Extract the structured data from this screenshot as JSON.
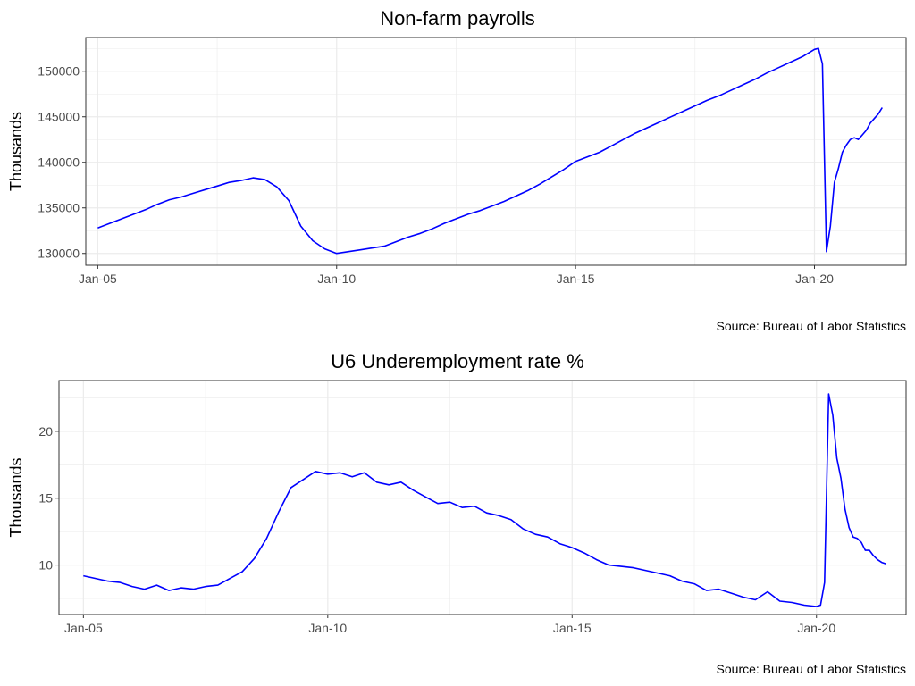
{
  "chart_data": [
    {
      "type": "line",
      "title": "Non-farm payrolls",
      "ylabel": "Thousands",
      "xlabel": "",
      "caption": "Source: Bureau of Labor Statistics",
      "x_ticks": [
        "Jan-05",
        "Jan-10",
        "Jan-15",
        "Jan-20"
      ],
      "y_ticks": [
        130000,
        135000,
        140000,
        145000,
        150000
      ],
      "xlim": [
        "2004-10",
        "2021-12"
      ],
      "ylim": [
        128700,
        153700
      ],
      "grid": true,
      "line_color": "#0000ff",
      "series": [
        {
          "x": [
            "2005-01",
            "2005-04",
            "2005-07",
            "2005-10",
            "2006-01",
            "2006-04",
            "2006-07",
            "2006-10",
            "2007-01",
            "2007-04",
            "2007-07",
            "2007-10",
            "2008-01",
            "2008-04",
            "2008-07",
            "2008-10",
            "2009-01",
            "2009-04",
            "2009-07",
            "2009-10",
            "2010-01",
            "2010-04",
            "2010-07",
            "2010-10",
            "2011-01",
            "2011-04",
            "2011-07",
            "2011-10",
            "2012-01",
            "2012-04",
            "2012-07",
            "2012-10",
            "2013-01",
            "2013-04",
            "2013-07",
            "2013-10",
            "2014-01",
            "2014-04",
            "2014-07",
            "2014-10",
            "2015-01",
            "2015-04",
            "2015-07",
            "2015-10",
            "2016-01",
            "2016-04",
            "2016-07",
            "2016-10",
            "2017-01",
            "2017-04",
            "2017-07",
            "2017-10",
            "2018-01",
            "2018-04",
            "2018-07",
            "2018-10",
            "2019-01",
            "2019-04",
            "2019-07",
            "2019-10",
            "2020-01",
            "2020-02",
            "2020-03",
            "2020-04",
            "2020-05",
            "2020-06",
            "2020-07",
            "2020-08",
            "2020-09",
            "2020-10",
            "2020-11",
            "2020-12",
            "2021-01",
            "2021-02",
            "2021-03",
            "2021-04",
            "2021-05",
            "2021-06"
          ],
          "y": [
            132800,
            133300,
            133800,
            134300,
            134800,
            135400,
            135900,
            136200,
            136600,
            137000,
            137400,
            137800,
            138000,
            138300,
            138100,
            137300,
            135800,
            133000,
            131400,
            130500,
            130000,
            130200,
            130400,
            130600,
            130800,
            131300,
            131800,
            132200,
            132700,
            133300,
            133800,
            134300,
            134700,
            135200,
            135700,
            136300,
            136900,
            137600,
            138400,
            139200,
            140100,
            140600,
            141100,
            141800,
            142500,
            143200,
            143800,
            144400,
            145000,
            145600,
            146200,
            146800,
            147300,
            147900,
            148500,
            149100,
            149800,
            150400,
            151000,
            151600,
            152400,
            152500,
            150800,
            130200,
            133000,
            137800,
            139300,
            141100,
            141900,
            142500,
            142700,
            142500,
            143000,
            143500,
            144300,
            144800,
            145300,
            146000
          ]
        }
      ]
    },
    {
      "type": "line",
      "title": "U6 Underemployment rate %",
      "ylabel": "Thousands",
      "xlabel": "",
      "caption": "Source: Bureau of Labor Statistics",
      "x_ticks": [
        "Jan-05",
        "Jan-10",
        "Jan-15",
        "Jan-20"
      ],
      "y_ticks": [
        10,
        15,
        20
      ],
      "xlim": [
        "2004-07",
        "2021-11"
      ],
      "ylim": [
        6.3,
        23.8
      ],
      "grid": true,
      "line_color": "#0000ff",
      "series": [
        {
          "x": [
            "2005-01",
            "2005-04",
            "2005-07",
            "2005-10",
            "2006-01",
            "2006-04",
            "2006-07",
            "2006-10",
            "2007-01",
            "2007-04",
            "2007-07",
            "2007-10",
            "2008-01",
            "2008-04",
            "2008-07",
            "2008-10",
            "2009-01",
            "2009-04",
            "2009-07",
            "2009-10",
            "2010-01",
            "2010-04",
            "2010-07",
            "2010-10",
            "2011-01",
            "2011-04",
            "2011-07",
            "2011-10",
            "2012-01",
            "2012-04",
            "2012-07",
            "2012-10",
            "2013-01",
            "2013-04",
            "2013-07",
            "2013-10",
            "2014-01",
            "2014-04",
            "2014-07",
            "2014-10",
            "2015-01",
            "2015-04",
            "2015-07",
            "2015-10",
            "2016-01",
            "2016-04",
            "2016-07",
            "2016-10",
            "2017-01",
            "2017-04",
            "2017-07",
            "2017-10",
            "2018-01",
            "2018-04",
            "2018-07",
            "2018-10",
            "2019-01",
            "2019-04",
            "2019-07",
            "2019-10",
            "2020-01",
            "2020-02",
            "2020-03",
            "2020-04",
            "2020-05",
            "2020-06",
            "2020-07",
            "2020-08",
            "2020-09",
            "2020-10",
            "2020-11",
            "2020-12",
            "2021-01",
            "2021-02",
            "2021-03",
            "2021-04",
            "2021-05",
            "2021-06"
          ],
          "y": [
            9.2,
            9.0,
            8.8,
            8.7,
            8.4,
            8.2,
            8.5,
            8.1,
            8.3,
            8.2,
            8.4,
            8.5,
            9.0,
            9.5,
            10.5,
            12.0,
            14.0,
            15.8,
            16.4,
            17.0,
            16.8,
            16.9,
            16.6,
            16.9,
            16.2,
            16.0,
            16.2,
            15.6,
            15.1,
            14.6,
            14.7,
            14.3,
            14.4,
            13.9,
            13.7,
            13.4,
            12.7,
            12.3,
            12.1,
            11.6,
            11.3,
            10.9,
            10.4,
            10.0,
            9.9,
            9.8,
            9.6,
            9.4,
            9.2,
            8.8,
            8.6,
            8.1,
            8.2,
            7.9,
            7.6,
            7.4,
            8.0,
            7.3,
            7.2,
            7.0,
            6.9,
            7.0,
            8.7,
            22.8,
            21.2,
            18.0,
            16.5,
            14.2,
            12.8,
            12.1,
            12.0,
            11.7,
            11.1,
            11.1,
            10.7,
            10.4,
            10.2,
            10.1
          ]
        }
      ]
    }
  ]
}
